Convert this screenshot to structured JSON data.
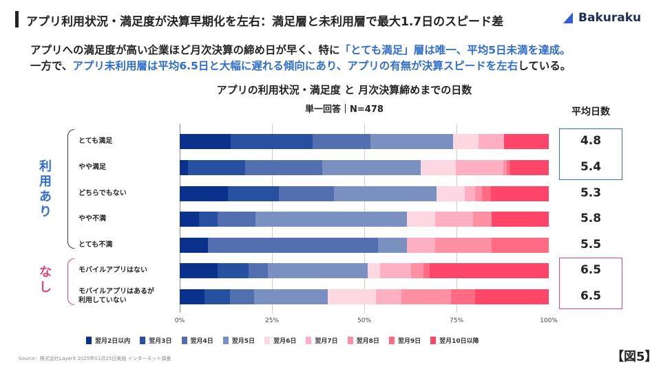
{
  "header": {
    "title": "アプリ利用状況・満足度が決算早期化を左右：満足層と未利用層で最大1.7日のスピード差",
    "logo": "Bakuraku"
  },
  "lead": {
    "l1a": "アプリへの満足度が高い企業ほど月次決算の締め日が早く、特に",
    "l1b": "「とても満足」層は唯一、平均5日未満を達成。",
    "l2a": "一方で、",
    "l2b": "アプリ未利用層は平均6.5日と大幅に遅れる傾向にあり、アプリの有無が決算スピードを左右",
    "l2c": "している。"
  },
  "groups": {
    "used": "利用あり",
    "unused": "なし"
  },
  "colors": {
    "accent_blue": "#2f6ecf",
    "accent_pink": "#e0457a"
  },
  "avg_header": "平均日数",
  "footer": {
    "source": "Source：株式会社LayerX 2025年11月25日実施 インターネット調査",
    "figure": "【図5】"
  },
  "chart_data": {
    "type": "bar",
    "orientation": "horizontal",
    "stacked": "100%",
    "title": "アプリの利用状況・満足度 と 月次決算締めまでの日数",
    "subtitle": "単一回答｜N=478",
    "xlim": [
      0,
      100
    ],
    "xticks": [
      "0%",
      "25%",
      "50%",
      "75%",
      "100%"
    ],
    "grid": true,
    "legend": "bottom",
    "categories": [
      "とても満足",
      "やや満足",
      "どちらでもない",
      "やや不満",
      "とても不満",
      "モバイルアプリはない",
      "モバイルアプリはあるが\n利用していない"
    ],
    "averages": [
      "4.8",
      "5.4",
      "5.3",
      "5.8",
      "5.5",
      "6.5",
      "6.5"
    ],
    "series": [
      {
        "name": "翌月2日以内",
        "color": "#0a318c",
        "values": [
          13.8,
          2.2,
          13.1,
          5.2,
          7.7,
          10.3,
          6.7
        ]
      },
      {
        "name": "翌月3日",
        "color": "#2750a0",
        "values": [
          22.3,
          15.6,
          13.8,
          5.1,
          0,
          8.3,
          6.9
        ]
      },
      {
        "name": "翌月4日",
        "color": "#5270b0",
        "values": [
          15.6,
          20.8,
          14.8,
          10.3,
          46.1,
          5.2,
          6.5
        ]
      },
      {
        "name": "翌月5日",
        "color": "#7a90c0",
        "values": [
          22.4,
          26.7,
          27.8,
          41.0,
          7.8,
          27.1,
          20.0
        ]
      },
      {
        "name": "翌月6日",
        "color": "#fdd8e2",
        "values": [
          6.9,
          9.5,
          7.8,
          7.6,
          0,
          3.4,
          13.1
        ]
      },
      {
        "name": "翌月7日",
        "color": "#feb0c2",
        "values": [
          6.9,
          12.8,
          2.7,
          10.3,
          7.6,
          8.4,
          6.9
        ]
      },
      {
        "name": "翌月8日",
        "color": "#ff8fa2",
        "values": [
          0,
          1.0,
          1.9,
          5.1,
          15.4,
          3.4,
          13.4
        ]
      },
      {
        "name": "翌月9日",
        "color": "#ff6b82",
        "values": [
          0,
          0.9,
          2.4,
          0,
          15.4,
          1.7,
          6.5
        ]
      },
      {
        "name": "翌月10日以降",
        "color": "#ff4668",
        "values": [
          12.1,
          10.5,
          15.7,
          15.4,
          0,
          32.2,
          20.0
        ]
      }
    ]
  }
}
